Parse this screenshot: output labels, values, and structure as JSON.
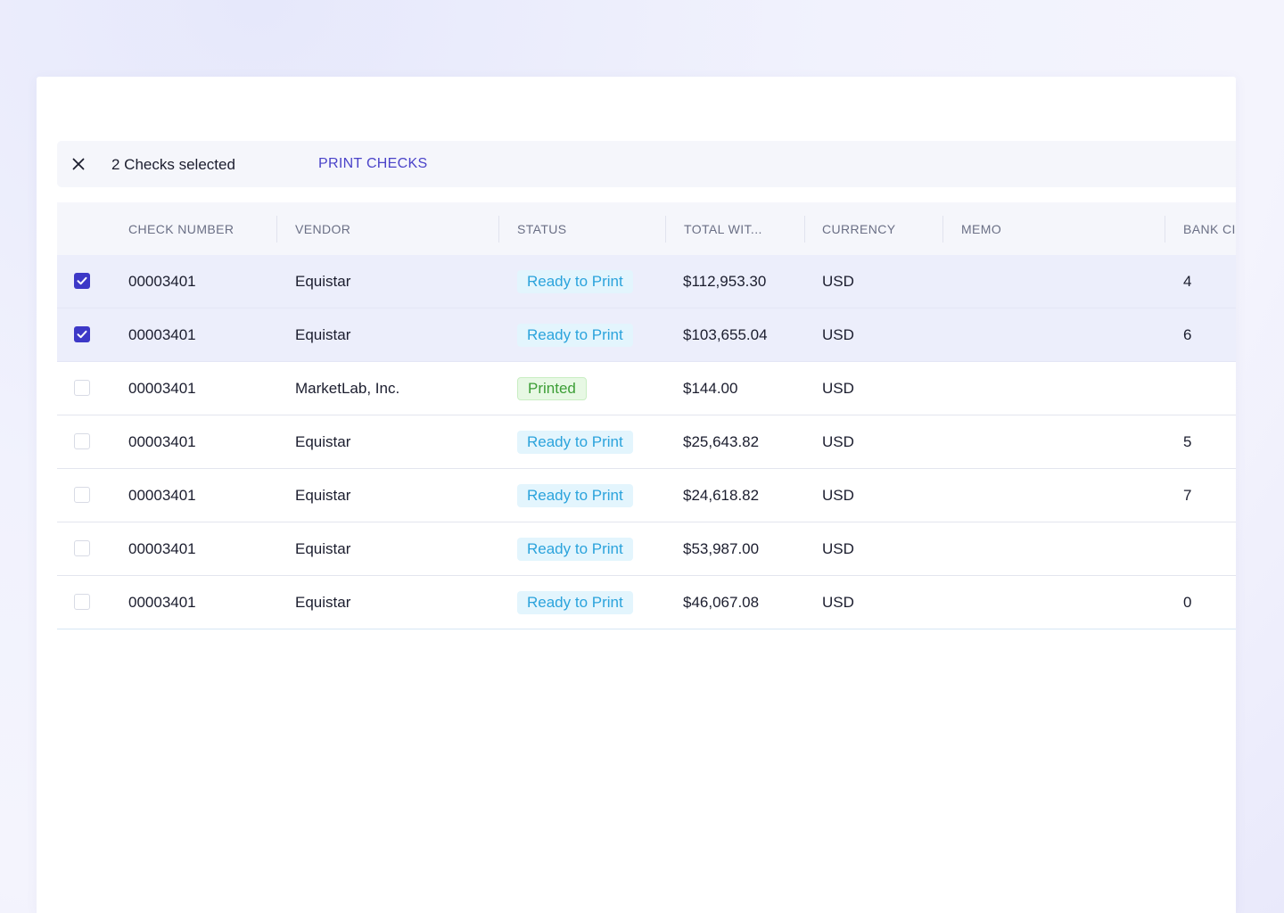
{
  "selection_bar": {
    "count_label": "2 Checks selected",
    "action_label": "PRINT CHECKS",
    "close_icon": "close-icon"
  },
  "table": {
    "columns": [
      "CHECK NUMBER",
      "VENDOR",
      "STATUS",
      "TOTAL WIT...",
      "CURRENCY",
      "MEMO",
      "BANK CI"
    ],
    "rows": [
      {
        "selected": true,
        "check_number": "00003401",
        "vendor": "Equistar",
        "status": "Ready to Print",
        "status_kind": "ready",
        "total": "$112,953.30",
        "currency": "USD",
        "memo": "",
        "bank": "4"
      },
      {
        "selected": true,
        "check_number": "00003401",
        "vendor": "Equistar",
        "status": "Ready to Print",
        "status_kind": "ready",
        "total": "$103,655.04",
        "currency": "USD",
        "memo": "",
        "bank": "6"
      },
      {
        "selected": false,
        "check_number": "00003401",
        "vendor": "MarketLab, Inc.",
        "status": "Printed",
        "status_kind": "printed",
        "total": "$144.00",
        "currency": "USD",
        "memo": "",
        "bank": ""
      },
      {
        "selected": false,
        "check_number": "00003401",
        "vendor": "Equistar",
        "status": "Ready to Print",
        "status_kind": "ready",
        "total": "$25,643.82",
        "currency": "USD",
        "memo": "",
        "bank": "5"
      },
      {
        "selected": false,
        "check_number": "00003401",
        "vendor": "Equistar",
        "status": "Ready to Print",
        "status_kind": "ready",
        "total": "$24,618.82",
        "currency": "USD",
        "memo": "",
        "bank": "7"
      },
      {
        "selected": false,
        "check_number": "00003401",
        "vendor": "Equistar",
        "status": "Ready to Print",
        "status_kind": "ready",
        "total": "$53,987.00",
        "currency": "USD",
        "memo": "",
        "bank": ""
      },
      {
        "selected": false,
        "check_number": "00003401",
        "vendor": "Equistar",
        "status": "Ready to Print",
        "status_kind": "ready",
        "total": "$46,067.08",
        "currency": "USD",
        "memo": "",
        "bank": "0"
      }
    ]
  },
  "colors": {
    "accent": "#3d38c7",
    "link": "#4a43c9",
    "ready_text": "#2ba3dc",
    "ready_bg": "#e3f5fd",
    "printed_text": "#3c9e36",
    "printed_bg": "#e7f8e4",
    "selected_row_bg": "#eceefb"
  }
}
